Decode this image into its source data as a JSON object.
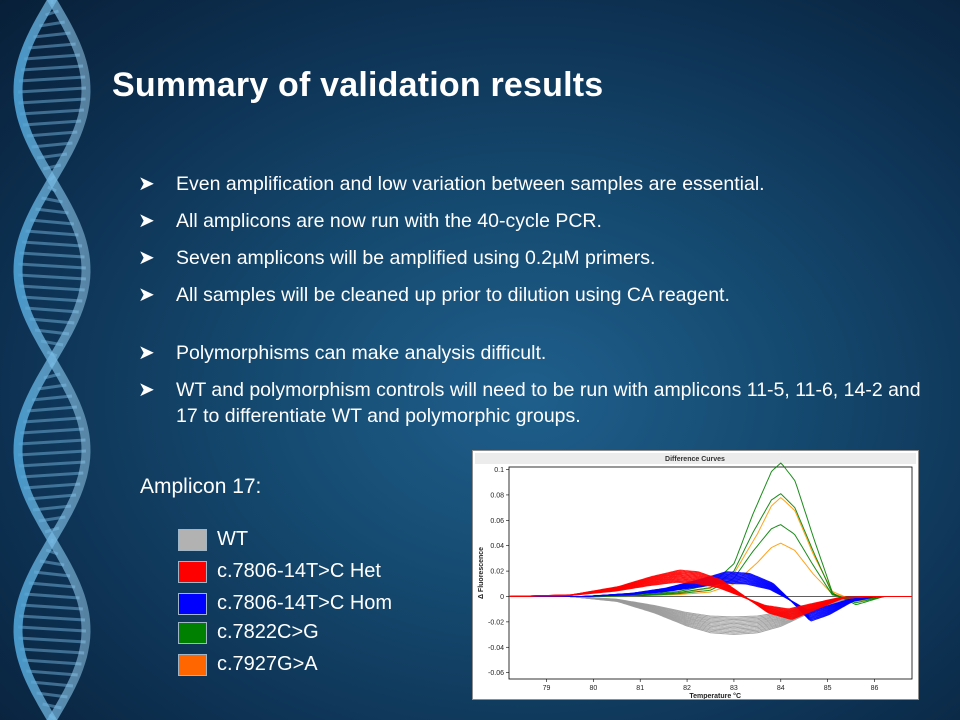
{
  "title": "Summary of validation results",
  "bullets": [
    "Even amplification and low variation between samples are essential.",
    "All amplicons are now run with the 40-cycle PCR.",
    "Seven amplicons will be amplified using 0.2µM primers.",
    "All samples will be cleaned up prior to dilution using CA reagent.",
    "Polymorphisms can make analysis difficult.",
    "WT and polymorphism controls will need to be run with amplicons 11-5, 11-6, 14-2 and 17 to differentiate WT and polymorphic groups."
  ],
  "bullet_icon": "arrowhead-bullet-icon",
  "amplicon_label": "Amplicon 17:",
  "legend": [
    {
      "label": "WT",
      "color": "#b2b2b2"
    },
    {
      "label": "c.7806-14T>C  Het",
      "color": "#ff0000"
    },
    {
      "label": "c.7806-14T>C  Hom",
      "color": "#0000ff"
    },
    {
      "label": "c.7822C>G",
      "color": "#008000"
    },
    {
      "label": "c.7927G>A",
      "color": "#ff6600"
    }
  ],
  "chart_data": {
    "type": "line",
    "title": "Difference Curves",
    "xlabel": "Temperature °C",
    "ylabel": "Δ Fluorescence",
    "xlim": [
      78.2,
      86.8
    ],
    "ylim": [
      -0.065,
      0.102
    ],
    "xticks": [
      "79",
      "80",
      "81",
      "82",
      "83",
      "84",
      "85",
      "86"
    ],
    "yticks": [
      "0.1",
      "0.08",
      "0.06",
      "0.04",
      "0.02",
      "0",
      "-0.02",
      "-0.04",
      "-0.06"
    ],
    "grid": false,
    "series": [
      {
        "group": "WT",
        "color": "#9a9a9a",
        "x": [
          78.2,
          79.5,
          80.5,
          81.3,
          82,
          82.5,
          83,
          83.5,
          84,
          84.6,
          85.2,
          86,
          86.8
        ],
        "y": [
          0,
          0,
          -0.003,
          -0.01,
          -0.018,
          -0.022,
          -0.023,
          -0.022,
          -0.018,
          -0.01,
          -0.003,
          0,
          0
        ]
      },
      {
        "group": "Het",
        "color": "#ff0000",
        "x": [
          78.2,
          79.5,
          80.5,
          81.2,
          81.8,
          82.2,
          82.7,
          83.2,
          83.7,
          84.2,
          84.7,
          85.3,
          86,
          86.8
        ],
        "y": [
          0,
          0.001,
          0.006,
          0.012,
          0.016,
          0.015,
          0.01,
          0,
          -0.01,
          -0.014,
          -0.008,
          -0.001,
          0,
          0
        ]
      },
      {
        "group": "Hom",
        "color": "#0000ff",
        "x": [
          78.2,
          79.8,
          80.8,
          81.5,
          82.2,
          82.8,
          83.3,
          83.8,
          84.2,
          84.6,
          85,
          85.5,
          86,
          86.8
        ],
        "y": [
          0,
          0,
          0.002,
          0.005,
          0.01,
          0.015,
          0.014,
          0.008,
          -0.003,
          -0.015,
          -0.011,
          -0.003,
          0,
          0
        ]
      },
      {
        "group": "c.7822C>G",
        "color": "#008000",
        "x": [
          78.2,
          80,
          81,
          81.8,
          82.5,
          83,
          83.4,
          83.8,
          84,
          84.3,
          84.7,
          85.1,
          85.6,
          86.2,
          86.8
        ],
        "y": [
          0,
          0,
          0.001,
          0.003,
          0.007,
          0.02,
          0.05,
          0.076,
          0.081,
          0.07,
          0.035,
          0.002,
          -0.005,
          0,
          0
        ]
      },
      {
        "group": "c.7927G>A",
        "color": "#ff9900",
        "x": [
          78.2,
          80,
          81,
          81.8,
          82.5,
          83,
          83.5,
          83.8,
          84,
          84.3,
          84.7,
          85.1,
          85.6,
          86.2,
          86.8
        ],
        "y": [
          0,
          0,
          0.001,
          0.002,
          0.005,
          0.014,
          0.038,
          0.055,
          0.06,
          0.052,
          0.025,
          0.003,
          -0.003,
          0,
          0
        ]
      }
    ]
  }
}
